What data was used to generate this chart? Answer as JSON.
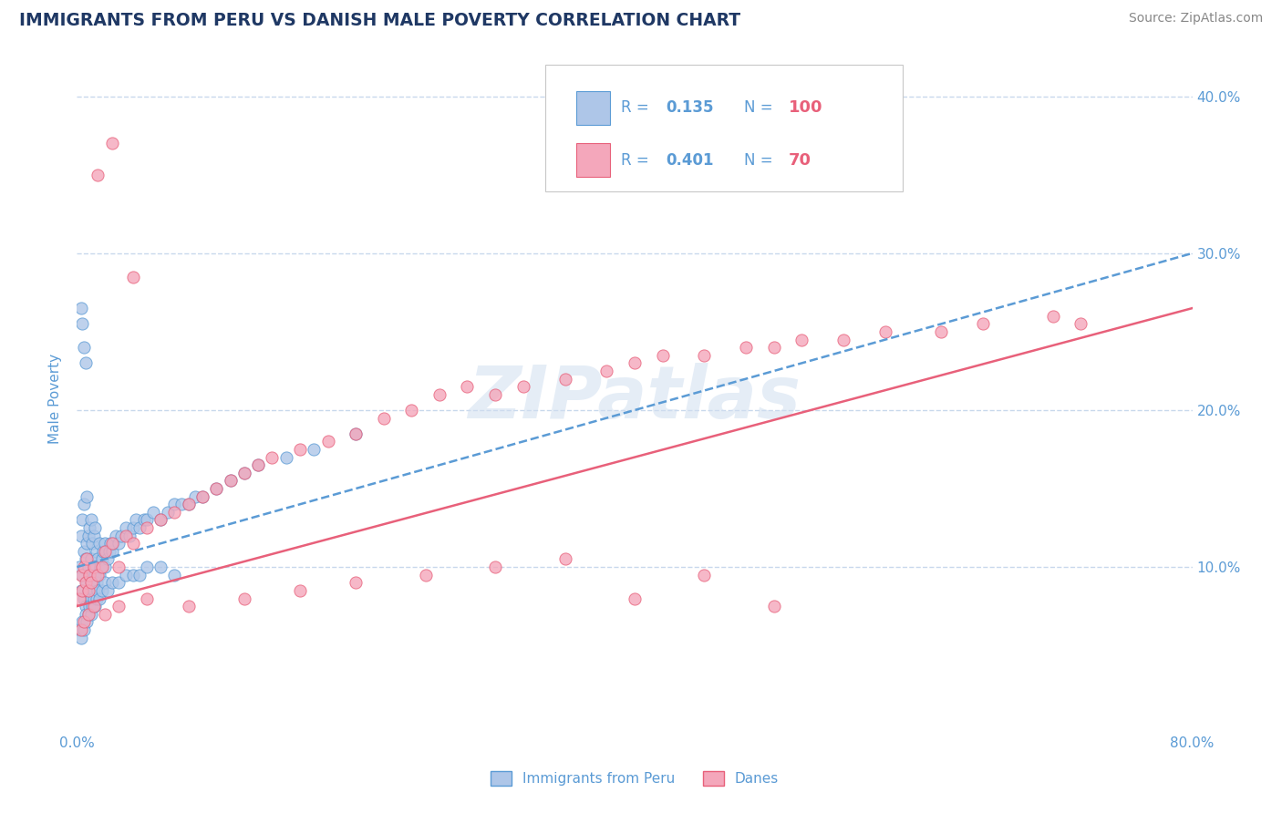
{
  "title": "IMMIGRANTS FROM PERU VS DANISH MALE POVERTY CORRELATION CHART",
  "source": "Source: ZipAtlas.com",
  "ylabel": "Male Poverty",
  "xlim": [
    0.0,
    0.8
  ],
  "ylim": [
    -0.005,
    0.42
  ],
  "xticks": [
    0.0,
    0.1,
    0.2,
    0.3,
    0.4,
    0.5,
    0.6,
    0.7,
    0.8
  ],
  "xtick_labels": [
    "0.0%",
    "",
    "",
    "",
    "",
    "",
    "",
    "",
    "80.0%"
  ],
  "yticks": [
    0.1,
    0.2,
    0.3,
    0.4
  ],
  "ytick_labels": [
    "10.0%",
    "20.0%",
    "30.0%",
    "40.0%"
  ],
  "blue_R": 0.135,
  "blue_N": 100,
  "pink_R": 0.401,
  "pink_N": 70,
  "blue_color": "#aec6e8",
  "pink_color": "#f4a7bb",
  "blue_edge_color": "#5b9bd5",
  "pink_edge_color": "#e8607a",
  "blue_line_color": "#5b9bd5",
  "pink_line_color": "#e8607a",
  "title_color": "#1f3864",
  "axis_color": "#5b9bd5",
  "grid_color": "#c8d8ec",
  "background_color": "#ffffff",
  "watermark": "ZIPatlas",
  "blue_trend": [
    0.0,
    0.8,
    0.1,
    0.3
  ],
  "pink_trend": [
    0.0,
    0.8,
    0.075,
    0.265
  ],
  "blue_scatter_x": [
    0.002,
    0.003,
    0.003,
    0.004,
    0.004,
    0.005,
    0.005,
    0.005,
    0.006,
    0.006,
    0.007,
    0.007,
    0.007,
    0.008,
    0.008,
    0.008,
    0.009,
    0.009,
    0.01,
    0.01,
    0.01,
    0.011,
    0.011,
    0.012,
    0.012,
    0.012,
    0.013,
    0.013,
    0.014,
    0.014,
    0.015,
    0.015,
    0.016,
    0.016,
    0.017,
    0.018,
    0.019,
    0.02,
    0.02,
    0.021,
    0.022,
    0.023,
    0.024,
    0.025,
    0.026,
    0.028,
    0.03,
    0.032,
    0.035,
    0.038,
    0.04,
    0.042,
    0.045,
    0.048,
    0.05,
    0.055,
    0.06,
    0.065,
    0.07,
    0.075,
    0.08,
    0.085,
    0.09,
    0.1,
    0.11,
    0.12,
    0.13,
    0.15,
    0.17,
    0.2,
    0.002,
    0.003,
    0.004,
    0.005,
    0.006,
    0.007,
    0.008,
    0.009,
    0.01,
    0.011,
    0.012,
    0.013,
    0.014,
    0.015,
    0.016,
    0.018,
    0.02,
    0.022,
    0.025,
    0.03,
    0.035,
    0.04,
    0.045,
    0.05,
    0.06,
    0.07,
    0.003,
    0.004,
    0.005,
    0.006
  ],
  "blue_scatter_y": [
    0.1,
    0.085,
    0.12,
    0.095,
    0.13,
    0.08,
    0.11,
    0.14,
    0.075,
    0.105,
    0.09,
    0.115,
    0.145,
    0.085,
    0.1,
    0.12,
    0.095,
    0.125,
    0.08,
    0.105,
    0.13,
    0.09,
    0.115,
    0.085,
    0.1,
    0.12,
    0.095,
    0.125,
    0.09,
    0.11,
    0.085,
    0.105,
    0.095,
    0.115,
    0.1,
    0.105,
    0.11,
    0.1,
    0.115,
    0.11,
    0.105,
    0.11,
    0.115,
    0.11,
    0.115,
    0.12,
    0.115,
    0.12,
    0.125,
    0.12,
    0.125,
    0.13,
    0.125,
    0.13,
    0.13,
    0.135,
    0.13,
    0.135,
    0.14,
    0.14,
    0.14,
    0.145,
    0.145,
    0.15,
    0.155,
    0.16,
    0.165,
    0.17,
    0.175,
    0.185,
    0.06,
    0.055,
    0.065,
    0.06,
    0.07,
    0.065,
    0.07,
    0.075,
    0.07,
    0.075,
    0.08,
    0.075,
    0.08,
    0.085,
    0.08,
    0.085,
    0.09,
    0.085,
    0.09,
    0.09,
    0.095,
    0.095,
    0.095,
    0.1,
    0.1,
    0.095,
    0.265,
    0.255,
    0.24,
    0.23
  ],
  "pink_scatter_x": [
    0.002,
    0.003,
    0.004,
    0.005,
    0.006,
    0.007,
    0.008,
    0.009,
    0.01,
    0.012,
    0.015,
    0.018,
    0.02,
    0.025,
    0.03,
    0.035,
    0.04,
    0.05,
    0.06,
    0.07,
    0.08,
    0.09,
    0.1,
    0.11,
    0.12,
    0.13,
    0.14,
    0.16,
    0.18,
    0.2,
    0.22,
    0.24,
    0.26,
    0.28,
    0.3,
    0.32,
    0.35,
    0.38,
    0.4,
    0.42,
    0.45,
    0.48,
    0.5,
    0.52,
    0.55,
    0.58,
    0.62,
    0.65,
    0.7,
    0.72,
    0.003,
    0.005,
    0.008,
    0.012,
    0.02,
    0.03,
    0.05,
    0.08,
    0.12,
    0.16,
    0.2,
    0.25,
    0.3,
    0.35,
    0.4,
    0.45,
    0.5,
    0.015,
    0.025,
    0.04
  ],
  "pink_scatter_y": [
    0.08,
    0.095,
    0.085,
    0.1,
    0.09,
    0.105,
    0.085,
    0.095,
    0.09,
    0.1,
    0.095,
    0.1,
    0.11,
    0.115,
    0.1,
    0.12,
    0.115,
    0.125,
    0.13,
    0.135,
    0.14,
    0.145,
    0.15,
    0.155,
    0.16,
    0.165,
    0.17,
    0.175,
    0.18,
    0.185,
    0.195,
    0.2,
    0.21,
    0.215,
    0.21,
    0.215,
    0.22,
    0.225,
    0.23,
    0.235,
    0.235,
    0.24,
    0.24,
    0.245,
    0.245,
    0.25,
    0.25,
    0.255,
    0.26,
    0.255,
    0.06,
    0.065,
    0.07,
    0.075,
    0.07,
    0.075,
    0.08,
    0.075,
    0.08,
    0.085,
    0.09,
    0.095,
    0.1,
    0.105,
    0.08,
    0.095,
    0.075,
    0.35,
    0.37,
    0.285
  ]
}
